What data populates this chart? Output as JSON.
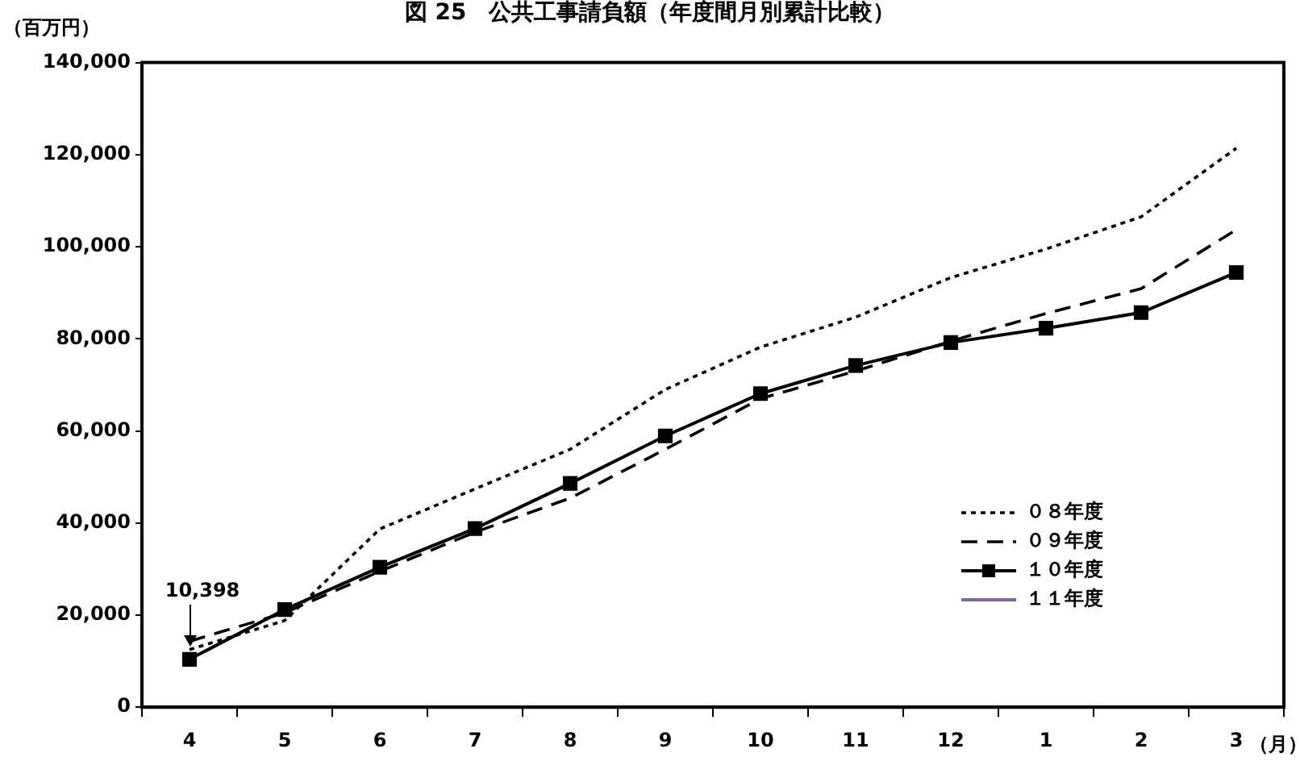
{
  "chart_data": {
    "type": "line",
    "title": "図 25　公共工事請負額（年度間月別累計比較）",
    "ylabel": "（百万円）",
    "xlabel": "（月）",
    "categories": [
      "4",
      "5",
      "6",
      "7",
      "8",
      "9",
      "10",
      "11",
      "12",
      "1",
      "2",
      "3"
    ],
    "series": [
      {
        "name": "０８年度",
        "color": "#000000",
        "line_style": "dotted",
        "marker": "none",
        "values": [
          12500,
          18800,
          38700,
          47400,
          56000,
          69000,
          78200,
          84700,
          93300,
          99500,
          106500,
          121400
        ]
      },
      {
        "name": "０９年度",
        "color": "#000000",
        "line_style": "dashed",
        "marker": "none",
        "values": [
          14300,
          20500,
          29500,
          38000,
          45400,
          56000,
          67000,
          73000,
          79500,
          85500,
          90900,
          103700
        ]
      },
      {
        "name": "１０年度",
        "color": "#000000",
        "line_style": "solid",
        "marker": "square",
        "values": [
          10398,
          21200,
          30400,
          38800,
          48600,
          58900,
          68100,
          74200,
          79200,
          82300,
          85700,
          94400
        ]
      },
      {
        "name": "１１年度",
        "color": "#8064a2",
        "line_style": "solid",
        "marker": "none",
        "values": [
          null,
          null,
          null,
          null,
          null,
          null,
          null,
          null,
          null,
          null,
          null,
          null
        ]
      }
    ],
    "ylim": [
      0,
      140000
    ],
    "yticks": [
      {
        "value": 0,
        "label": "0"
      },
      {
        "value": 20000,
        "label": "20,000"
      },
      {
        "value": 40000,
        "label": "40,000"
      },
      {
        "value": 60000,
        "label": "60,000"
      },
      {
        "value": 80000,
        "label": "80,000"
      },
      {
        "value": 100000,
        "label": "100,000"
      },
      {
        "value": 120000,
        "label": "120,000"
      },
      {
        "value": 140000,
        "label": "140,000"
      }
    ],
    "annotations": [
      {
        "text": "10,398",
        "x": "4",
        "y": 10398
      }
    ],
    "grid": false,
    "legend": "bottom right"
  }
}
